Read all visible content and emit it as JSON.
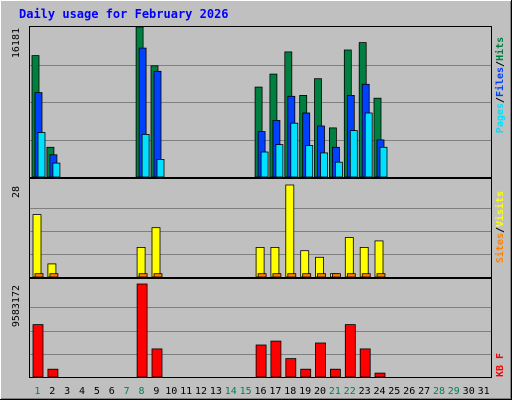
{
  "chart_data": {
    "type": "bar",
    "title": "Daily usage for February 2026",
    "days": [
      "1",
      "2",
      "3",
      "4",
      "5",
      "6",
      "7",
      "8",
      "9",
      "10",
      "11",
      "12",
      "13",
      "14",
      "15",
      "16",
      "17",
      "18",
      "19",
      "20",
      "21",
      "22",
      "23",
      "24",
      "25",
      "26",
      "27",
      "28",
      "29",
      "30",
      "31"
    ],
    "weekend_days": [
      "1",
      "7",
      "8",
      "14",
      "15",
      "21",
      "22",
      "28",
      "29"
    ],
    "panels": [
      {
        "id": "hits",
        "ymax_label": "16181",
        "ymax": 16181,
        "legend": [
          {
            "text": "Pages",
            "color": "#00E0FF"
          },
          {
            "text": "/",
            "color": "#000000"
          },
          {
            "text": "Files",
            "color": "#0040FF"
          },
          {
            "text": "/",
            "color": "#000000"
          },
          {
            "text": "Hits",
            "color": "#008040"
          }
        ],
        "series": [
          {
            "name": "Hits",
            "color": "#008040",
            "values": [
              13100,
              3200,
              0,
              0,
              0,
              0,
              0,
              16181,
              12000,
              0,
              0,
              0,
              0,
              0,
              0,
              9700,
              11100,
              13500,
              8800,
              10600,
              5300,
              13700,
              14500,
              8500,
              0,
              0,
              0,
              0,
              0,
              0,
              0
            ]
          },
          {
            "name": "Files",
            "color": "#0040FF",
            "values": [
              9100,
              2400,
              0,
              0,
              0,
              0,
              0,
              13900,
              11400,
              0,
              0,
              0,
              0,
              0,
              0,
              4900,
              6100,
              8700,
              6900,
              5500,
              3200,
              8800,
              10000,
              4000,
              0,
              0,
              0,
              0,
              0,
              0,
              0
            ]
          },
          {
            "name": "Pages",
            "color": "#00E0FF",
            "values": [
              4800,
              1500,
              0,
              0,
              0,
              0,
              0,
              4600,
              1900,
              0,
              0,
              0,
              0,
              0,
              0,
              2700,
              3500,
              5800,
              3400,
              2600,
              1600,
              5000,
              6900,
              3200,
              0,
              0,
              0,
              0,
              0,
              0,
              0
            ]
          }
        ]
      },
      {
        "id": "visits",
        "ymax_label": "28",
        "ymax": 28,
        "legend": [
          {
            "text": "Sites",
            "color": "#FF8000"
          },
          {
            "text": "/",
            "color": "#000000"
          },
          {
            "text": "Visits",
            "color": "#FFFF00"
          }
        ],
        "series": [
          {
            "name": "Visits",
            "color": "#FFFF00",
            "values": [
              19,
              4,
              0,
              0,
              0,
              0,
              0,
              9,
              15,
              0,
              0,
              0,
              0,
              0,
              0,
              9,
              9,
              28,
              8,
              6,
              1,
              12,
              9,
              11,
              0,
              0,
              0,
              0,
              0,
              0,
              0
            ]
          },
          {
            "name": "Sites",
            "color": "#FF8000",
            "values": [
              1,
              1,
              0,
              0,
              0,
              0,
              0,
              1,
              1,
              0,
              0,
              0,
              0,
              0,
              0,
              1,
              1,
              1,
              1,
              1,
              1,
              1,
              1,
              1,
              0,
              0,
              0,
              0,
              0,
              0,
              0
            ]
          }
        ]
      },
      {
        "id": "kbytes",
        "ymax_label": "9583172",
        "ymax": 9583172,
        "legend": [
          {
            "text": "KB",
            "color": "#FF0000"
          },
          {
            "text": "F",
            "color": "#FF0000"
          }
        ],
        "series": [
          {
            "name": "KB F",
            "color": "#FF0000",
            "values": [
              5400000,
              800000,
              0,
              0,
              0,
              0,
              0,
              9583172,
              2900000,
              0,
              0,
              0,
              0,
              0,
              0,
              3300000,
              3700000,
              1900000,
              800000,
              3500000,
              800000,
              5400000,
              2900000,
              400000,
              0,
              0,
              0,
              0,
              0,
              0,
              0
            ]
          }
        ]
      }
    ]
  },
  "colors": {
    "background": "#C0C0C0",
    "title": "#0000FF",
    "weekend_label": "#00805C",
    "day_label": "#000000",
    "gridline": "#808080"
  }
}
